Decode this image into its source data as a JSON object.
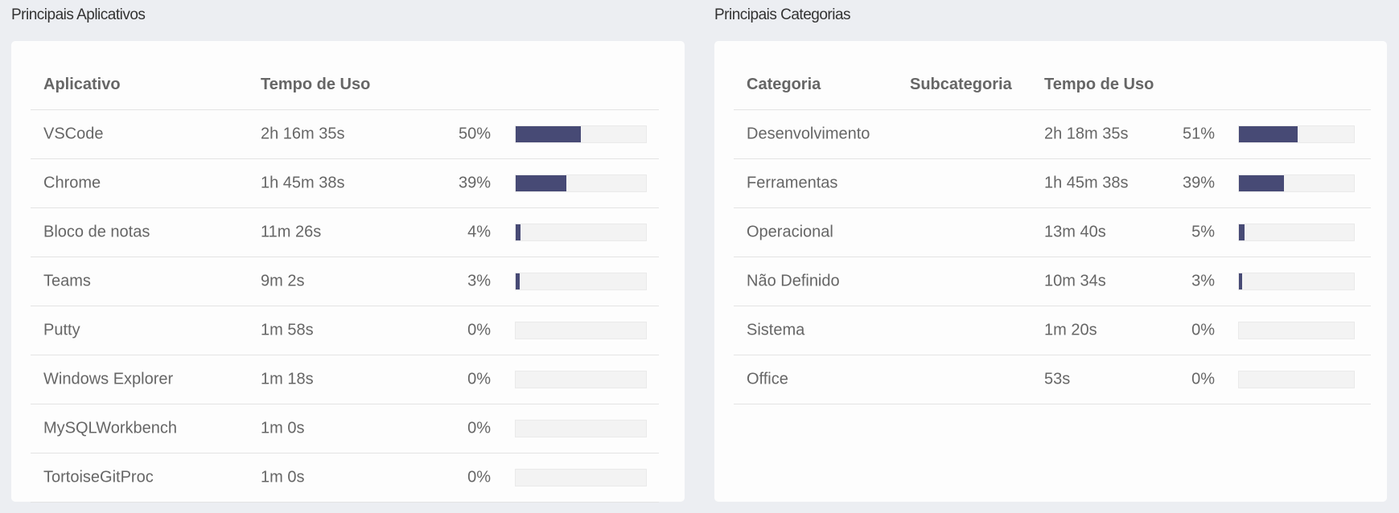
{
  "apps": {
    "title": "Principais Aplicativos",
    "headers": [
      "Aplicativo",
      "Tempo de Uso"
    ],
    "rows": [
      {
        "name": "VSCode",
        "time": "2h 16m 35s",
        "share": 50,
        "share_label": "50%"
      },
      {
        "name": "Chrome",
        "time": "1h 45m 38s",
        "share": 39,
        "share_label": "39%"
      },
      {
        "name": "Bloco de notas",
        "time": "11m 26s",
        "share": 4,
        "share_label": "4%"
      },
      {
        "name": "Teams",
        "time": "9m 2s",
        "share": 3,
        "share_label": "3%"
      },
      {
        "name": "Putty",
        "time": "1m 58s",
        "share": 0,
        "share_label": "0%"
      },
      {
        "name": "Windows Explorer",
        "time": "1m 18s",
        "share": 0,
        "share_label": "0%"
      },
      {
        "name": "MySQLWorkbench",
        "time": "1m 0s",
        "share": 0,
        "share_label": "0%"
      },
      {
        "name": "TortoiseGitProc",
        "time": "1m 0s",
        "share": 0,
        "share_label": "0%"
      }
    ]
  },
  "categories": {
    "title": "Principais Categorias",
    "headers": [
      "Categoria",
      "Subcategoria",
      "Tempo de Uso"
    ],
    "rows": [
      {
        "name": "Desenvolvimento",
        "time": "2h 18m 35s",
        "share": 51,
        "share_label": "51%"
      },
      {
        "name": "Ferramentas",
        "time": "1h 45m 38s",
        "share": 39,
        "share_label": "39%"
      },
      {
        "name": "Operacional",
        "time": "13m 40s",
        "share": 5,
        "share_label": "5%"
      },
      {
        "name": "Não Definido",
        "time": "10m 34s",
        "share": 3,
        "share_label": "3%"
      },
      {
        "name": "Sistema",
        "time": "1m 20s",
        "share": 0,
        "share_label": "0%"
      },
      {
        "name": "Office",
        "time": "53s",
        "share": 0,
        "share_label": "0%"
      }
    ]
  }
}
